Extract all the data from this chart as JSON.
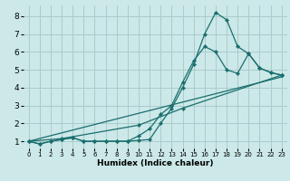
{
  "xlabel": "Humidex (Indice chaleur)",
  "bg_color": "#cce8e8",
  "grid_color": "#aacccc",
  "line_color": "#1a6e6e",
  "xlim": [
    -0.5,
    23.5
  ],
  "ylim": [
    0.6,
    8.6
  ],
  "xticks": [
    0,
    1,
    2,
    3,
    4,
    5,
    6,
    7,
    8,
    9,
    10,
    11,
    12,
    13,
    14,
    15,
    16,
    17,
    18,
    19,
    20,
    21,
    22,
    23
  ],
  "yticks": [
    1,
    2,
    3,
    4,
    5,
    6,
    7,
    8
  ],
  "series": [
    {
      "x": [
        0,
        1,
        2,
        3,
        4,
        5,
        6,
        7,
        8,
        9,
        10,
        11,
        12,
        13,
        14,
        15,
        16,
        17,
        18,
        19,
        20,
        21,
        22,
        23
      ],
      "y": [
        1.0,
        0.85,
        1.0,
        1.1,
        1.2,
        1.0,
        1.0,
        1.0,
        1.0,
        1.0,
        1.05,
        1.1,
        2.0,
        2.85,
        4.0,
        5.3,
        7.0,
        8.2,
        7.8,
        6.3,
        5.9,
        5.1,
        4.85,
        4.7
      ],
      "markers": true
    },
    {
      "x": [
        0,
        1,
        2,
        3,
        4,
        5,
        6,
        7,
        8,
        9,
        10,
        11,
        12,
        13,
        14,
        15,
        16,
        17,
        18,
        19,
        20,
        21,
        22,
        23
      ],
      "y": [
        1.0,
        0.85,
        1.0,
        1.1,
        1.2,
        1.0,
        1.0,
        1.0,
        1.0,
        1.0,
        1.3,
        1.7,
        2.5,
        3.0,
        4.3,
        5.5,
        6.3,
        6.0,
        5.0,
        4.8,
        5.9,
        5.1,
        4.85,
        4.7
      ],
      "markers": true
    },
    {
      "x": [
        0,
        3,
        10,
        14,
        23
      ],
      "y": [
        1.0,
        1.15,
        1.9,
        2.85,
        4.7
      ],
      "markers": true
    },
    {
      "x": [
        0,
        23
      ],
      "y": [
        1.0,
        4.6
      ],
      "markers": false
    }
  ]
}
